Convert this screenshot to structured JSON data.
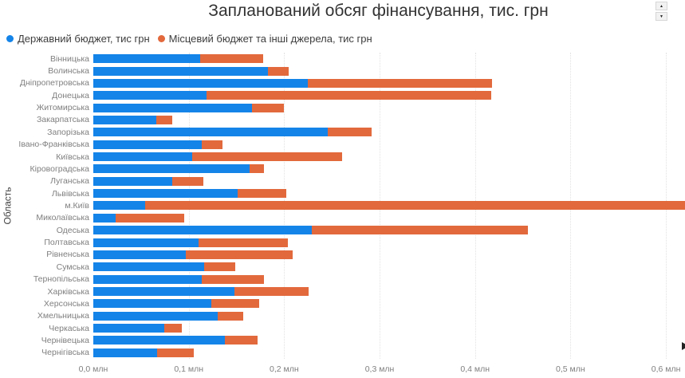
{
  "title": "Запланований обсяг фінансування, тис. грн",
  "icons": {
    "spinner_up_icon": "▲",
    "spinner_down_icon": "▼"
  },
  "chart_data": {
    "type": "bar",
    "orientation": "horizontal",
    "stacked": true,
    "title": "Запланований обсяг фінансування, тис. грн",
    "xlabel": "",
    "ylabel": "Область",
    "units": "тис грн",
    "legend_position": "top-left",
    "grid": "vertical-dotted",
    "xlim_thousand": [
      0,
      620
    ],
    "x_tick_values_thousand": [
      0,
      100,
      200,
      300,
      400,
      500,
      600
    ],
    "x_tick_labels": [
      "0,0 млн",
      "0,1 млн",
      "0,2 млн",
      "0,3 млн",
      "0,4 млн",
      "0,5 млн",
      "0,6 млн"
    ],
    "categories": [
      "Вінницька",
      "Волинська",
      "Дніпропетровська",
      "Донецька",
      "Житомирська",
      "Закарпатська",
      "Запорізька",
      "Івано-Франківська",
      "Київська",
      "Кіровоградська",
      "Луганська",
      "Львівська",
      "м.Київ",
      "Миколаївська",
      "Одеська",
      "Полтавська",
      "Рівненська",
      "Сумська",
      "Тернопільська",
      "Харківська",
      "Херсонська",
      "Хмельницька",
      "Черкаська",
      "Чернівецька",
      "Чернігівська"
    ],
    "series": [
      {
        "name": "Державний бюджет, тис грн",
        "color": "#1484e8",
        "values": [
          112,
          183,
          225,
          119,
          166,
          66,
          246,
          114,
          104,
          164,
          83,
          151,
          54,
          23,
          229,
          110,
          97,
          116,
          114,
          148,
          124,
          130,
          74,
          138,
          67
        ]
      },
      {
        "name": "Місцевий бюджет та інші джерела, тис грн",
        "color": "#e2693c",
        "values": [
          66,
          22,
          193,
          298,
          34,
          17,
          46,
          21,
          157,
          15,
          32,
          51,
          600,
          72,
          226,
          94,
          112,
          33,
          65,
          78,
          50,
          27,
          19,
          34,
          38
        ]
      }
    ],
    "notes": "м.Київ bar is clipped at the right edge of the visible axis range"
  }
}
